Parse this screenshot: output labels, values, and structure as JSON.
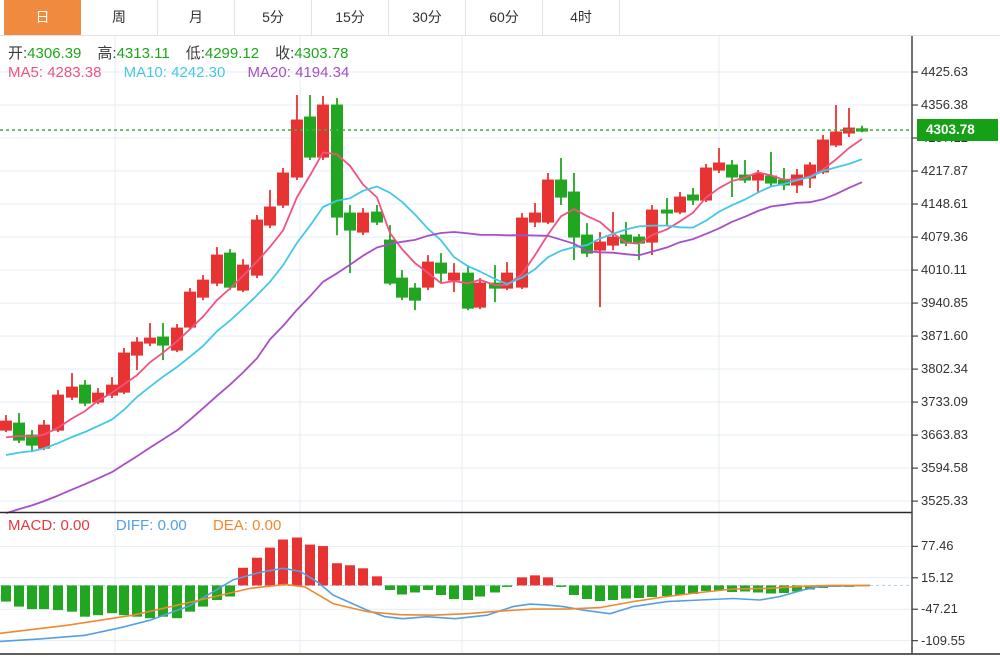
{
  "tabs": [
    {
      "id": "day",
      "label": "日",
      "active": true
    },
    {
      "id": "week",
      "label": "周",
      "active": false
    },
    {
      "id": "month",
      "label": "月",
      "active": false
    },
    {
      "id": "5min",
      "label": "5分",
      "active": false
    },
    {
      "id": "15min",
      "label": "15分",
      "active": false
    },
    {
      "id": "30min",
      "label": "30分",
      "active": false
    },
    {
      "id": "60min",
      "label": "60分",
      "active": false
    },
    {
      "id": "4hour",
      "label": "4时",
      "active": false
    }
  ],
  "ohlc_bar": {
    "open_label": "开:",
    "open_value": "4306.39",
    "high_label": "高:",
    "high_value": "4313.11",
    "low_label": "低:",
    "low_value": "4299.12",
    "close_label": "收:",
    "close_value": "4303.78"
  },
  "ma_bar": {
    "ma5_label": "MA5:",
    "ma5_value": "4283.38",
    "ma10_label": "MA10:",
    "ma10_value": "4242.30",
    "ma20_label": "MA20:",
    "ma20_value": "4194.34"
  },
  "macd_bar": {
    "macd_label": "MACD:",
    "macd_value": "0.00",
    "diff_label": "DIFF:",
    "diff_value": "0.00",
    "dea_label": "DEA:",
    "dea_value": "0.00"
  },
  "current_price_label": "4303.78",
  "colors": {
    "up": "#e83333",
    "down": "#21a621",
    "ma5": "#f2527f",
    "ma10": "#45c8e8",
    "ma20": "#a64fc8",
    "diff": "#55a0e0",
    "dea": "#f08830",
    "price_line": "#3cb043",
    "price_box": "#16a016",
    "tab_accent": "#f08a3e",
    "grid": "#e4edf5",
    "axis_line": "#444444",
    "value_green": "#1ea51e",
    "macd_red": "#e23b3b",
    "zero_dash": "#b5d5ee"
  },
  "chart_data": {
    "type": "candlestick+macd",
    "main": {
      "ylim": [
        3496.2,
        4501.2
      ],
      "price_ticks": [
        4425.63,
        4356.38,
        4287.12,
        4217.87,
        4148.61,
        4079.36,
        4010.11,
        3940.85,
        3871.6,
        3802.34,
        3733.09,
        3663.83,
        3594.58,
        3525.33
      ],
      "vertical_grid_x": [
        115,
        300,
        462,
        719
      ],
      "current_price": 4303.78,
      "candles_format": [
        "x",
        "open",
        "high",
        "low",
        "close"
      ],
      "candles": [
        [
          6,
          3674.3,
          3705.8,
          3670.1,
          3693.2
        ],
        [
          19,
          3689.0,
          3710.0,
          3647.0,
          3653.3
        ],
        [
          32,
          3663.8,
          3674.3,
          3628.1,
          3642.8
        ],
        [
          44,
          3636.5,
          3695.3,
          3632.3,
          3684.8
        ],
        [
          58,
          3674.3,
          3758.2,
          3670.1,
          3747.7
        ],
        [
          72,
          3743.5,
          3793.9,
          3737.3,
          3764.5
        ],
        [
          85,
          3768.7,
          3779.2,
          3724.7,
          3731.0
        ],
        [
          98,
          3733.1,
          3762.4,
          3728.9,
          3751.9
        ],
        [
          112,
          3747.7,
          3785.5,
          3741.4,
          3768.7
        ],
        [
          124,
          3754.0,
          3846.4,
          3749.8,
          3835.9
        ],
        [
          137,
          3831.7,
          3869.5,
          3800.2,
          3859.0
        ],
        [
          150,
          3856.9,
          3898.9,
          3850.6,
          3867.4
        ],
        [
          163,
          3869.5,
          3898.9,
          3821.2,
          3852.7
        ],
        [
          177,
          3842.2,
          3896.8,
          3838.0,
          3888.4
        ],
        [
          190,
          3890.5,
          3972.2,
          3884.2,
          3963.8
        ],
        [
          203,
          3953.3,
          3999.5,
          3947.0,
          3989.0
        ],
        [
          217,
          3982.7,
          4058.3,
          3976.4,
          4041.5
        ],
        [
          230,
          4045.7,
          4054.1,
          3968.0,
          3974.3
        ],
        [
          243,
          3968.0,
          4033.1,
          3963.8,
          4020.5
        ],
        [
          257,
          3999.5,
          4125.5,
          3993.2,
          4115.0
        ],
        [
          270,
          4104.5,
          4178.0,
          4098.2,
          4142.3
        ],
        [
          283,
          4146.5,
          4224.2,
          4140.2,
          4213.7
        ],
        [
          297,
          4205.3,
          4377.4,
          4199.0,
          4324.9
        ],
        [
          310,
          4331.2,
          4377.4,
          4240.9,
          4247.2
        ],
        [
          323,
          4247.2,
          4375.3,
          4240.9,
          4356.4
        ],
        [
          337,
          4356.4,
          4371.1,
          4083.5,
          4121.3
        ],
        [
          350,
          4129.7,
          4146.5,
          4003.7,
          4094.0
        ],
        [
          363,
          4089.8,
          4140.2,
          4083.5,
          4129.7
        ],
        [
          377,
          4131.8,
          4146.5,
          4104.5,
          4110.8
        ],
        [
          390,
          4073.0,
          4104.5,
          3978.5,
          3982.7
        ],
        [
          402,
          3993.2,
          4010.0,
          3947.0,
          3953.3
        ],
        [
          415,
          3972.2,
          3982.7,
          3926.0,
          3947.0
        ],
        [
          428,
          3974.3,
          4041.5,
          3968.0,
          4026.8
        ],
        [
          441,
          4024.7,
          4045.7,
          3982.7,
          4003.7
        ],
        [
          454,
          3989.0,
          4024.7,
          3963.8,
          4003.7
        ],
        [
          468,
          4003.7,
          4020.5,
          3926.0,
          3930.2
        ],
        [
          480,
          3932.3,
          3993.2,
          3928.1,
          3982.7
        ],
        [
          495,
          3982.7,
          4020.5,
          3942.8,
          3972.2
        ],
        [
          507,
          3972.2,
          4026.8,
          3968.0,
          4003.7
        ],
        [
          522,
          3974.3,
          4129.7,
          3970.1,
          4119.2
        ],
        [
          535,
          4110.8,
          4150.7,
          4100.3,
          4129.7
        ],
        [
          548,
          4110.8,
          4213.7,
          4106.6,
          4199.0
        ],
        [
          561,
          4199.0,
          4245.1,
          4146.5,
          4163.3
        ],
        [
          574,
          4173.8,
          4213.7,
          4031.0,
          4079.3
        ],
        [
          587,
          4083.5,
          4108.7,
          4037.3,
          4045.7
        ],
        [
          600,
          4052.0,
          4089.8,
          3932.3,
          4068.8
        ],
        [
          613,
          4062.5,
          4131.8,
          4052.0,
          4079.3
        ],
        [
          626,
          4083.5,
          4110.8,
          4060.4,
          4066.7
        ],
        [
          639,
          4079.3,
          4085.6,
          4031.0,
          4066.7
        ],
        [
          652,
          4068.8,
          4146.5,
          4041.5,
          4136.0
        ],
        [
          667,
          4136.0,
          4161.2,
          4104.5,
          4129.7
        ],
        [
          680,
          4131.8,
          4173.8,
          4127.6,
          4163.3
        ],
        [
          693,
          4167.5,
          4182.2,
          4146.5,
          4157.0
        ],
        [
          706,
          4157.0,
          4232.6,
          4152.8,
          4224.2
        ],
        [
          719,
          4220.0,
          4266.1,
          4213.7,
          4234.7
        ],
        [
          732,
          4230.5,
          4240.9,
          4163.3,
          4205.3
        ],
        [
          745,
          4209.5,
          4240.9,
          4192.7,
          4199.0
        ],
        [
          758,
          4199.0,
          4220.0,
          4173.8,
          4211.6
        ],
        [
          771,
          4207.4,
          4257.7,
          4186.4,
          4192.7
        ],
        [
          784,
          4199.0,
          4224.2,
          4178.0,
          4188.5
        ],
        [
          797,
          4188.5,
          4222.1,
          4171.7,
          4209.5
        ],
        [
          810,
          4203.2,
          4236.7,
          4182.2,
          4230.5
        ],
        [
          823,
          4215.8,
          4293.4,
          4211.6,
          4282.9
        ],
        [
          836,
          4272.4,
          4356.4,
          4268.2,
          4299.7
        ],
        [
          849,
          4297.6,
          4350.1,
          4289.2,
          4308.1
        ],
        [
          862,
          4306.39,
          4313.11,
          4299.12,
          4303.78
        ]
      ],
      "ma_series": [
        {
          "name": "MA5",
          "window": 5,
          "left_edge_value": 3659
        },
        {
          "name": "MA10",
          "window": 10,
          "left_edge_value": 3622
        },
        {
          "name": "MA20",
          "window": 20,
          "left_edge_value": 3500
        }
      ]
    },
    "macd": {
      "ylim": [
        -136,
        100
      ],
      "value_ticks": [
        77.46,
        15.12,
        -47.21,
        -109.55
      ],
      "histogram": [
        -32,
        -42,
        -47,
        -47,
        -49,
        -52,
        -62,
        -59,
        -55,
        -59,
        -62,
        -65,
        -62,
        -65,
        -52,
        -42,
        -29,
        -22,
        35,
        55,
        75,
        91,
        95,
        81,
        78,
        44,
        40,
        34,
        18,
        -9,
        -18,
        -14,
        -9,
        -19,
        -27,
        -29,
        -22,
        -14,
        -2,
        16,
        20,
        16,
        -2,
        -19,
        -27,
        -31,
        -29,
        -26,
        -25,
        -23,
        -21,
        -19,
        -17,
        -11,
        -10,
        -13,
        -12,
        -14,
        -16,
        -15,
        -12,
        -8,
        -5,
        -2,
        -1,
        0
      ],
      "diff_points": [
        [
          0,
          -111
        ],
        [
          40,
          -106
        ],
        [
          85,
          -99
        ],
        [
          120,
          -84
        ],
        [
          150,
          -69
        ],
        [
          190,
          -40
        ],
        [
          233,
          11
        ],
        [
          260,
          26
        ],
        [
          283,
          34
        ],
        [
          300,
          28
        ],
        [
          318,
          6
        ],
        [
          333,
          -19
        ],
        [
          367,
          -49
        ],
        [
          385,
          -62
        ],
        [
          403,
          -66
        ],
        [
          427,
          -62
        ],
        [
          455,
          -66
        ],
        [
          487,
          -59
        ],
        [
          513,
          -42
        ],
        [
          530,
          -37
        ],
        [
          547,
          -39
        ],
        [
          563,
          -42
        ],
        [
          583,
          -49
        ],
        [
          610,
          -56
        ],
        [
          633,
          -42
        ],
        [
          667,
          -32
        ],
        [
          700,
          -29
        ],
        [
          733,
          -26
        ],
        [
          760,
          -29
        ],
        [
          780,
          -22
        ],
        [
          803,
          -9
        ],
        [
          820,
          -2
        ],
        [
          840,
          -1
        ],
        [
          870,
          0
        ]
      ],
      "dea_points": [
        [
          0,
          -95
        ],
        [
          67,
          -79
        ],
        [
          133,
          -59
        ],
        [
          200,
          -29
        ],
        [
          250,
          -6
        ],
        [
          285,
          2
        ],
        [
          305,
          -3
        ],
        [
          333,
          -36
        ],
        [
          367,
          -52
        ],
        [
          400,
          -58
        ],
        [
          433,
          -59
        ],
        [
          467,
          -56
        ],
        [
          500,
          -51
        ],
        [
          533,
          -47
        ],
        [
          567,
          -47
        ],
        [
          600,
          -44
        ],
        [
          633,
          -32
        ],
        [
          667,
          -22
        ],
        [
          700,
          -14
        ],
        [
          733,
          -7
        ],
        [
          767,
          -6
        ],
        [
          800,
          -2
        ],
        [
          830,
          0
        ],
        [
          870,
          0
        ]
      ]
    }
  }
}
